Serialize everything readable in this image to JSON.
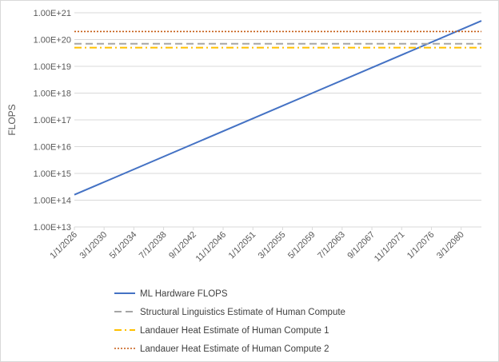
{
  "chart_data": {
    "type": "line",
    "ylabel": "FLOPS",
    "y_scale": "log",
    "ylim": [
      10000000000000.0,
      1e+21
    ],
    "y_ticks": [
      "1.00E+13",
      "1.00E+14",
      "1.00E+15",
      "1.00E+16",
      "1.00E+17",
      "1.00E+18",
      "1.00E+19",
      "1.00E+20",
      "1.00E+21"
    ],
    "x_tick_labels": [
      "1/1/2026",
      "3/1/2030",
      "5/1/2034",
      "7/1/2038",
      "9/1/2042",
      "11/1/2046",
      "1/1/2051",
      "3/1/2055",
      "5/1/2059",
      "7/1/2063",
      "9/1/2067",
      "11/1/2071",
      "1/1/2076",
      "3/1/2080"
    ],
    "xlim": [
      "1/1/2026",
      "1/1/2083"
    ],
    "grid": "horizontal",
    "legend_position": "bottom",
    "series": [
      {
        "name": "ML Hardware FLOPS",
        "style": "solid",
        "color": "#4472C4",
        "points": [
          {
            "x": "1/1/2026",
            "y": 160000000000000.0
          },
          {
            "x": "1/1/2083",
            "y": 5e+20
          }
        ]
      },
      {
        "name": "Structural Linguistics Estimate of Human Compute",
        "style": "dashed",
        "color": "#A5A5A5",
        "points": [
          {
            "x": "1/1/2026",
            "y": 7e+19
          },
          {
            "x": "1/1/2083",
            "y": 7e+19
          }
        ]
      },
      {
        "name": "Landauer Heat Estimate of Human Compute 1",
        "style": "dash-dot",
        "color": "#FFC000",
        "points": [
          {
            "x": "1/1/2026",
            "y": 5e+19
          },
          {
            "x": "1/1/2083",
            "y": 5e+19
          }
        ]
      },
      {
        "name": "Landauer Heat Estimate of Human Compute 2",
        "style": "dotted",
        "color": "#C55A11",
        "points": [
          {
            "x": "1/1/2026",
            "y": 2e+20
          },
          {
            "x": "1/1/2083",
            "y": 2e+20
          }
        ]
      }
    ]
  }
}
